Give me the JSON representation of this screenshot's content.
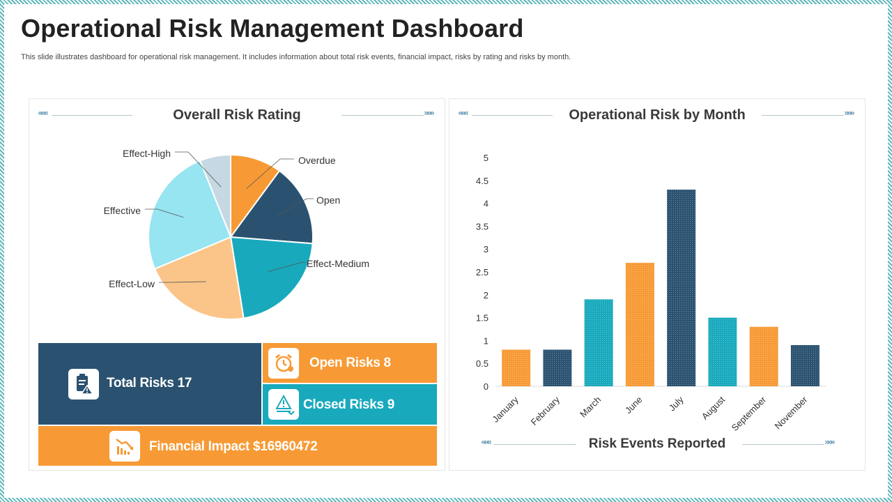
{
  "header": {
    "title": "Operational Risk Management Dashboard",
    "subtitle": "This slide illustrates dashboard for operational risk management. It includes information about total risk events, financial impact, risks by rating and risks by month."
  },
  "left_panel": {
    "title": "Overall Risk Rating",
    "arrow_left": "«««",
    "arrow_right": "»»»"
  },
  "right_panel": {
    "title": "Operational Risk by Month",
    "footer_title": "Risk Events Reported",
    "arrow_left": "«««",
    "arrow_right": "»»»"
  },
  "tiles": {
    "total_risks": "Total Risks 17",
    "open_risks": "Open Risks 8",
    "closed_risks": "Closed Risks 9",
    "financial_impact": "Financial Impact  $16960472"
  },
  "colors": {
    "orange": "#f79a35",
    "navy": "#2a5270",
    "teal": "#18a9bd",
    "peach": "#fbc58a",
    "light_cyan": "#96e5f1",
    "pale_blue": "#c5d8e3"
  },
  "chart_data": [
    {
      "type": "pie",
      "title": "Overall Risk Rating",
      "labels": [
        "Overdue",
        "Open",
        "Effect-Medium",
        "Effect-Low",
        "Effective",
        "Effect-High"
      ],
      "values": [
        10,
        16,
        21,
        21,
        25,
        6
      ],
      "colors": [
        "#f79a35",
        "#2a5270",
        "#18a9bd",
        "#fbc58a",
        "#96e5f1",
        "#c5d8e3"
      ]
    },
    {
      "type": "bar",
      "title": "Operational Risk by Month",
      "xlabel": "Risk Events Reported",
      "categories": [
        "January",
        "February",
        "March",
        "June",
        "July",
        "August",
        "September",
        "November"
      ],
      "values": [
        0.8,
        0.8,
        1.9,
        2.7,
        4.3,
        1.5,
        1.3,
        0.9
      ],
      "colors": [
        "#f79a35",
        "#2a5270",
        "#18a9bd",
        "#f79a35",
        "#2a5270",
        "#18a9bd",
        "#f79a35",
        "#2a5270"
      ],
      "ylim": [
        0,
        5
      ],
      "yticks": [
        "0",
        "0.5",
        "1",
        "1.5",
        "2",
        "2.5",
        "3",
        "3.5",
        "4",
        "4.5",
        "5"
      ]
    }
  ]
}
